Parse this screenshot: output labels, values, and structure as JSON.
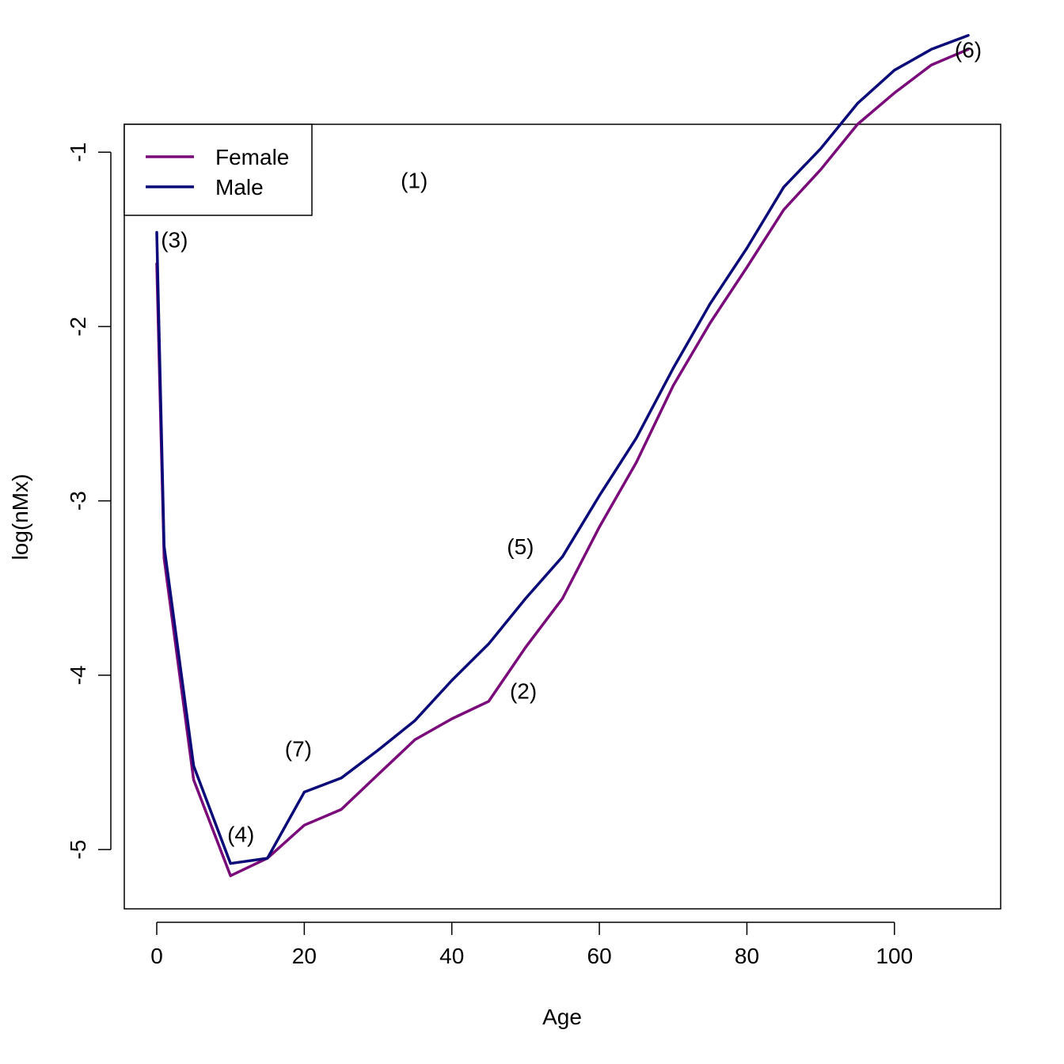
{
  "chart_data": {
    "type": "line",
    "title": "",
    "xlabel": "Age",
    "ylabel": "log(nMx)",
    "xlim": [
      -4.4,
      114.4
    ],
    "ylim": [
      -5.34,
      -0.84
    ],
    "xticks": [
      0,
      20,
      40,
      60,
      80,
      100
    ],
    "yticks": [
      -5,
      -4,
      -3,
      -2,
      -1
    ],
    "ytick_labels": [
      "-5",
      "-4",
      "-3",
      "-2",
      "-1"
    ],
    "grid": false,
    "legend_position": "top-left",
    "series": [
      {
        "name": "Female",
        "color": "#7a0a7a",
        "points": [
          [
            0,
            -1.64
          ],
          [
            1,
            -3.33
          ],
          [
            5,
            -4.6
          ],
          [
            10,
            -5.15
          ],
          [
            15,
            -5.05
          ],
          [
            20,
            -4.86
          ],
          [
            25,
            -4.77
          ],
          [
            30,
            -4.57
          ],
          [
            35,
            -4.37
          ],
          [
            40,
            -4.25
          ],
          [
            45,
            -4.15
          ],
          [
            50,
            -3.84
          ],
          [
            55,
            -3.56
          ],
          [
            60,
            -3.15
          ],
          [
            65,
            -2.78
          ],
          [
            70,
            -2.34
          ],
          [
            75,
            -1.98
          ],
          [
            80,
            -1.66
          ],
          [
            85,
            -1.33
          ],
          [
            90,
            -1.1
          ],
          [
            95,
            -0.84
          ],
          [
            100,
            -0.66
          ],
          [
            105,
            -0.5
          ],
          [
            110,
            -0.41
          ]
        ]
      },
      {
        "name": "Male",
        "color": "#0a0a78",
        "points": [
          [
            0,
            -1.46
          ],
          [
            1,
            -3.26
          ],
          [
            5,
            -4.52
          ],
          [
            10,
            -5.08
          ],
          [
            15,
            -5.05
          ],
          [
            20,
            -4.67
          ],
          [
            25,
            -4.59
          ],
          [
            30,
            -4.43
          ],
          [
            35,
            -4.26
          ],
          [
            40,
            -4.03
          ],
          [
            45,
            -3.82
          ],
          [
            50,
            -3.56
          ],
          [
            55,
            -3.32
          ],
          [
            60,
            -2.97
          ],
          [
            65,
            -2.64
          ],
          [
            70,
            -2.24
          ],
          [
            75,
            -1.87
          ],
          [
            80,
            -1.55
          ],
          [
            85,
            -1.2
          ],
          [
            90,
            -0.98
          ],
          [
            95,
            -0.72
          ],
          [
            100,
            -0.53
          ],
          [
            105,
            -0.41
          ],
          [
            110,
            -0.33
          ]
        ]
      }
    ],
    "annotations": [
      {
        "text": "(1)",
        "x": 34.9,
        "y": -1.16
      },
      {
        "text": "(2)",
        "x": 49.7,
        "y": -4.09
      },
      {
        "text": "(3)",
        "x": 2.4,
        "y": -1.5
      },
      {
        "text": "(4)",
        "x": 11.4,
        "y": -4.91
      },
      {
        "text": "(5)",
        "x": 49.3,
        "y": -3.26
      },
      {
        "text": "(6)",
        "x": 110.0,
        "y": -0.41
      },
      {
        "text": "(7)",
        "x": 19.2,
        "y": -4.42
      }
    ]
  }
}
